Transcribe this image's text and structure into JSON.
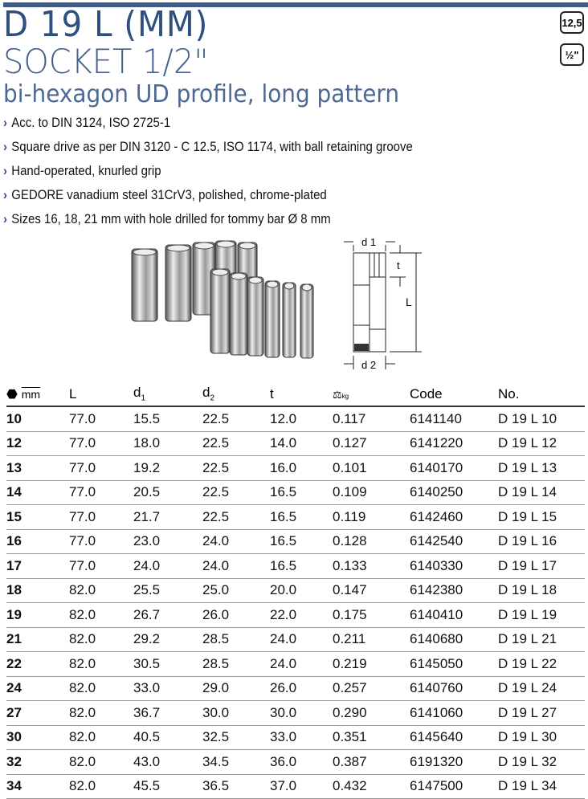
{
  "header": {
    "title": "D 19 L (MM)",
    "subtitle": "SOCKET 1/2\"",
    "description": "bi-hexagon UD profile, long pattern",
    "badges": [
      "12,5",
      "½\""
    ]
  },
  "features": [
    "Acc. to DIN 3124, ISO 2725-1",
    "Square drive as per DIN 3120 - C 12.5, ISO 1174, with ball retaining groove",
    "Hand-operated, knurled grip",
    "GEDORE vanadium steel 31CrV3, polished, chrome-plated",
    "Sizes 16, 18, 21 mm with hole drilled for tommy bar Ø 8 mm"
  ],
  "diagram": {
    "labels": [
      "d 1",
      "t",
      "L",
      "d 2"
    ]
  },
  "table": {
    "headers": {
      "size_unit": "mm",
      "L": "L",
      "d1": "d",
      "d1_sub": "1",
      "d2": "d",
      "d2_sub": "2",
      "t": "t",
      "weight_unit": "kg",
      "code": "Code",
      "no": "No."
    },
    "rows": [
      [
        "10",
        "77.0",
        "15.5",
        "22.5",
        "12.0",
        "0.117",
        "6141140",
        "D 19 L 10"
      ],
      [
        "12",
        "77.0",
        "18.0",
        "22.5",
        "14.0",
        "0.127",
        "6141220",
        "D 19 L 12"
      ],
      [
        "13",
        "77.0",
        "19.2",
        "22.5",
        "16.0",
        "0.101",
        "6140170",
        "D 19 L 13"
      ],
      [
        "14",
        "77.0",
        "20.5",
        "22.5",
        "16.5",
        "0.109",
        "6140250",
        "D 19 L 14"
      ],
      [
        "15",
        "77.0",
        "21.7",
        "22.5",
        "16.5",
        "0.119",
        "6142460",
        "D 19 L 15"
      ],
      [
        "16",
        "77.0",
        "23.0",
        "24.0",
        "16.5",
        "0.128",
        "6142540",
        "D 19 L 16"
      ],
      [
        "17",
        "77.0",
        "24.0",
        "24.0",
        "16.5",
        "0.133",
        "6140330",
        "D 19 L 17"
      ],
      [
        "18",
        "82.0",
        "25.5",
        "25.0",
        "20.0",
        "0.147",
        "6142380",
        "D 19 L 18"
      ],
      [
        "19",
        "82.0",
        "26.7",
        "26.0",
        "22.0",
        "0.175",
        "6140410",
        "D 19 L 19"
      ],
      [
        "21",
        "82.0",
        "29.2",
        "28.5",
        "24.0",
        "0.211",
        "6140680",
        "D 19 L 21"
      ],
      [
        "22",
        "82.0",
        "30.5",
        "28.5",
        "24.0",
        "0.219",
        "6145050",
        "D 19 L 22"
      ],
      [
        "24",
        "82.0",
        "33.0",
        "29.0",
        "26.0",
        "0.257",
        "6140760",
        "D 19 L 24"
      ],
      [
        "27",
        "82.0",
        "36.7",
        "30.0",
        "30.0",
        "0.290",
        "6141060",
        "D 19 L 27"
      ],
      [
        "30",
        "82.0",
        "40.5",
        "32.5",
        "33.0",
        "0.351",
        "6145640",
        "D 19 L 30"
      ],
      [
        "32",
        "82.0",
        "43.0",
        "34.5",
        "36.0",
        "0.387",
        "6191320",
        "D 19 L 32"
      ],
      [
        "34",
        "82.0",
        "45.5",
        "36.5",
        "37.0",
        "0.432",
        "6147500",
        "D 19 L 34"
      ]
    ]
  },
  "colors": {
    "brand": "#2f4f7f"
  }
}
